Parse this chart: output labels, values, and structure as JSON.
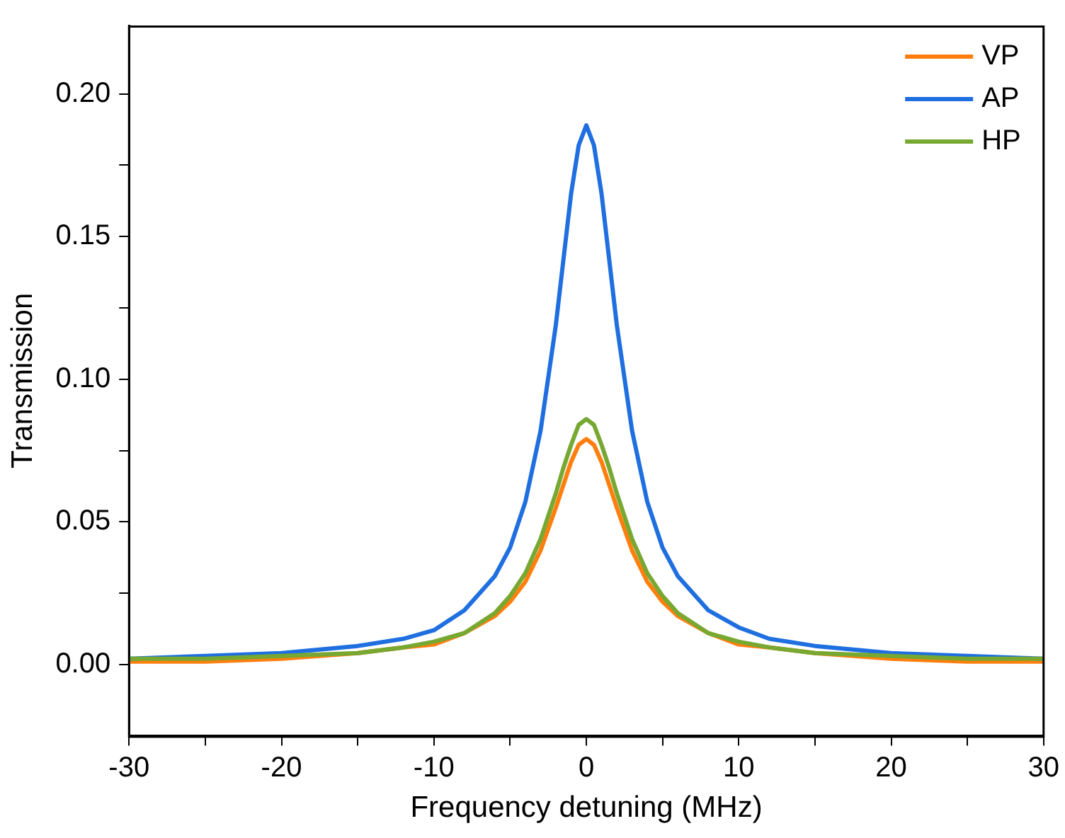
{
  "chart_data": {
    "type": "line",
    "xlabel": "Frequency detuning (MHz)",
    "ylabel": "Transmission",
    "x": [
      -30,
      -25,
      -20,
      -15,
      -12,
      -10,
      -8,
      -6,
      -5,
      -4,
      -3,
      -2,
      -1.5,
      -1,
      -0.5,
      0,
      0.5,
      1,
      1.5,
      2,
      3,
      4,
      5,
      6,
      8,
      10,
      12,
      15,
      20,
      25,
      30
    ],
    "series": [
      {
        "name": "VP",
        "color": "#ff7f0e",
        "values": [
          0.001,
          0.001,
          0.002,
          0.004,
          0.006,
          0.007,
          0.011,
          0.017,
          0.022,
          0.029,
          0.04,
          0.055,
          0.063,
          0.071,
          0.077,
          0.079,
          0.077,
          0.071,
          0.063,
          0.055,
          0.04,
          0.029,
          0.022,
          0.017,
          0.011,
          0.007,
          0.006,
          0.004,
          0.002,
          0.001,
          0.001
        ]
      },
      {
        "name": "AP",
        "color": "#1f6fe0",
        "values": [
          0.002,
          0.003,
          0.004,
          0.0065,
          0.009,
          0.012,
          0.019,
          0.031,
          0.041,
          0.057,
          0.082,
          0.119,
          0.142,
          0.165,
          0.182,
          0.189,
          0.182,
          0.165,
          0.142,
          0.119,
          0.082,
          0.057,
          0.041,
          0.031,
          0.019,
          0.013,
          0.009,
          0.0065,
          0.004,
          0.003,
          0.002
        ]
      },
      {
        "name": "HP",
        "color": "#76a832",
        "values": [
          0.002,
          0.002,
          0.003,
          0.004,
          0.006,
          0.008,
          0.011,
          0.018,
          0.024,
          0.032,
          0.044,
          0.06,
          0.069,
          0.077,
          0.084,
          0.086,
          0.084,
          0.077,
          0.069,
          0.06,
          0.044,
          0.032,
          0.024,
          0.018,
          0.011,
          0.008,
          0.006,
          0.004,
          0.003,
          0.002,
          0.002
        ]
      }
    ],
    "xlim": [
      -30,
      30
    ],
    "ylim": [
      -0.025,
      0.224
    ],
    "xticks": [
      -30,
      {
        "value": -25,
        "label": null
      },
      -20,
      {
        "value": -15,
        "label": null
      },
      -10,
      {
        "value": -5,
        "label": null
      },
      0,
      {
        "value": 5,
        "label": null
      },
      10,
      {
        "value": 15,
        "label": null
      },
      20,
      {
        "value": 25,
        "label": null
      },
      30
    ],
    "yticks": [
      {
        "value": 0,
        "label": "0.00"
      },
      {
        "value": 0.025,
        "label": null
      },
      0.05,
      {
        "value": 0.075,
        "label": null
      },
      {
        "value": 0.1,
        "label": "0.10"
      },
      {
        "value": 0.125,
        "label": null
      },
      0.15,
      {
        "value": 0.175,
        "label": null
      },
      {
        "value": 0.2,
        "label": "0.20"
      }
    ],
    "grid": false,
    "legend": "top right",
    "marker": "none",
    "line_style": "solid"
  }
}
